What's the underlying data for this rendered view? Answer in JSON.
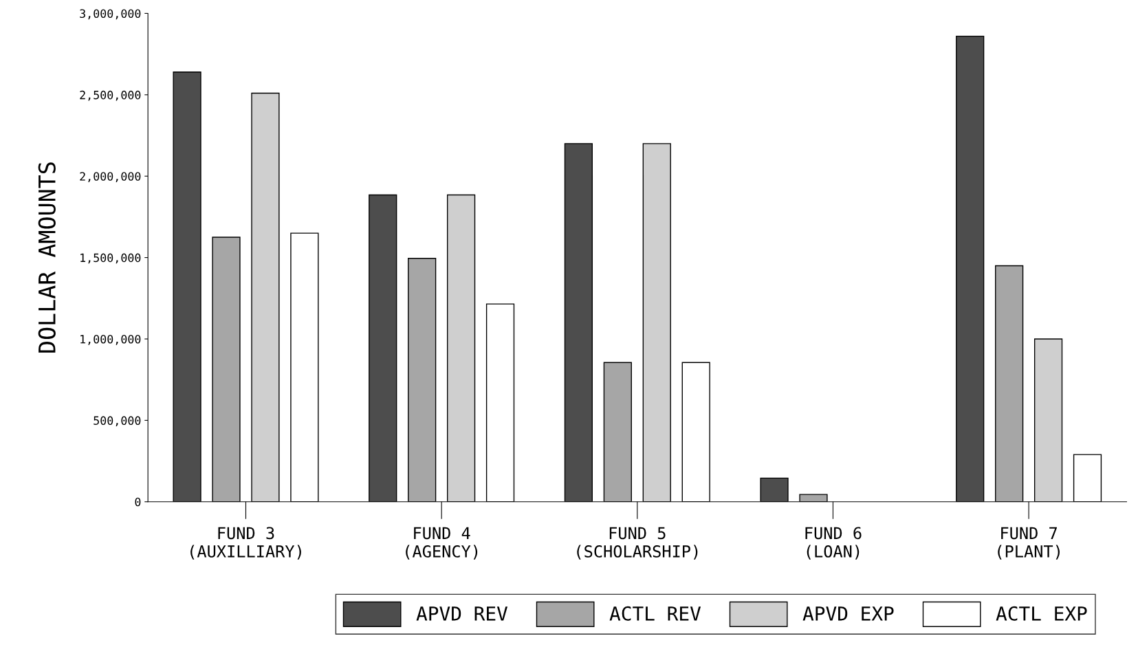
{
  "chart_data": {
    "type": "bar",
    "ylabel": "DOLLAR AMOUNTS",
    "categories": [
      "FUND 3\n(AUXILLIARY)",
      "FUND 4\n(AGENCY)",
      "FUND 5\n(SCHOLARSHIP)",
      "FUND 6\n(LOAN)",
      "FUND 7\n(PLANT)"
    ],
    "series": [
      {
        "name": "APVD REV",
        "color": "#4d4d4d",
        "values": [
          2640000,
          1885000,
          2200000,
          145000,
          2860000
        ]
      },
      {
        "name": "ACTL REV",
        "color": "#a6a6a6",
        "values": [
          1625000,
          1495000,
          855000,
          45000,
          1450000
        ]
      },
      {
        "name": "APVD EXP",
        "color": "#cfcfcf",
        "values": [
          2510000,
          1885000,
          2200000,
          null,
          1000000
        ]
      },
      {
        "name": "ACTL EXP",
        "color": "#ffffff",
        "values": [
          1650000,
          1215000,
          855000,
          null,
          290000
        ]
      }
    ],
    "ylim": [
      0,
      3000000
    ],
    "yticks": [
      0,
      {
        "value": 500000,
        "label": "500,000"
      },
      {
        "value": 1000000,
        "label": "1,000,000"
      },
      {
        "value": 1500000,
        "label": "1,500,000"
      },
      {
        "value": 2000000,
        "label": "2,000,000"
      },
      {
        "value": 2500000,
        "label": "2,500,000"
      },
      {
        "value": 3000000,
        "label": "3,000,000"
      }
    ],
    "grid": false,
    "legend": "bottom"
  }
}
